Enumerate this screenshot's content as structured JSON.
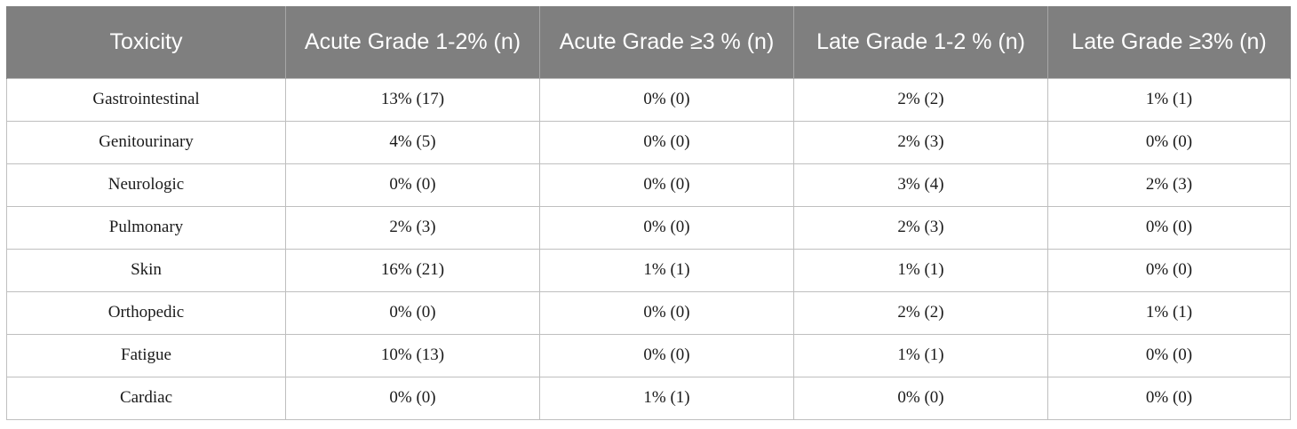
{
  "table": {
    "headers": [
      "Toxicity",
      "Acute Grade 1-2% (n)",
      "Acute Grade ≥3 % (n)",
      "Late Grade 1-2 % (n)",
      "Late Grade ≥3% (n)"
    ],
    "rows": [
      [
        "Gastrointestinal",
        "13% (17)",
        "0% (0)",
        "2% (2)",
        "1% (1)"
      ],
      [
        "Genitourinary",
        "4% (5)",
        "0% (0)",
        "2% (3)",
        "0% (0)"
      ],
      [
        "Neurologic",
        "0% (0)",
        "0% (0)",
        "3% (4)",
        "2% (3)"
      ],
      [
        "Pulmonary",
        "2% (3)",
        "0% (0)",
        "2% (3)",
        "0% (0)"
      ],
      [
        "Skin",
        "16% (21)",
        "1% (1)",
        "1% (1)",
        "0% (0)"
      ],
      [
        "Orthopedic",
        "0% (0)",
        "0% (0)",
        "2% (2)",
        "1% (1)"
      ],
      [
        "Fatigue",
        "10% (13)",
        "0% (0)",
        "1% (1)",
        "0% (0)"
      ],
      [
        "Cardiac",
        "0% (0)",
        "1% (1)",
        "0% (0)",
        "0% (0)"
      ]
    ]
  }
}
